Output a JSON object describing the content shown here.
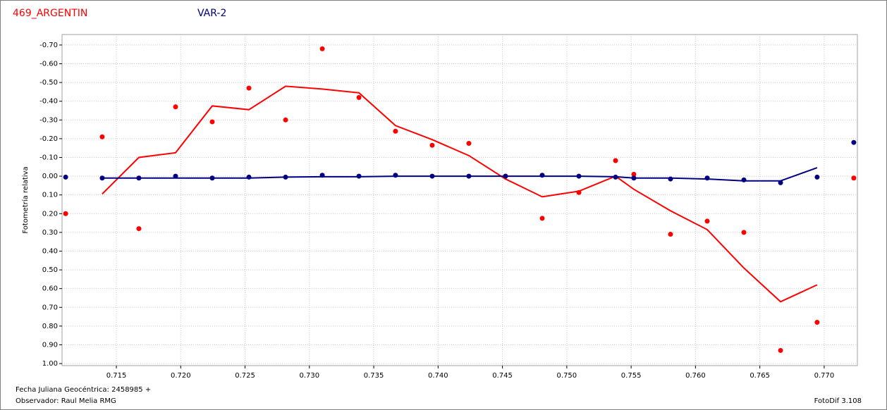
{
  "chart_data": {
    "type": "scatter",
    "series_label_1": "469_ARGENTIN",
    "series_label_2": "VAR-2",
    "ylabel": "Fotometría relativa",
    "xlabel": "Fecha Juliana Geocéntrica: 2458985 +",
    "observer": "Observador: Raul Melia RMG",
    "software": "FotoDif 3.108",
    "grid": true,
    "y_inverted": true,
    "xlim": [
      0.71078,
      0.77258
    ],
    "xticks": [
      0.715,
      {
        "value": 0.72,
        "label": "0.720"
      },
      0.725,
      {
        "value": 0.73,
        "label": "0.730"
      },
      0.735,
      {
        "value": 0.74,
        "label": "0.740"
      },
      0.745,
      {
        "value": 0.75,
        "label": "0.750"
      },
      0.755,
      {
        "value": 0.76,
        "label": "0.760"
      },
      0.765,
      {
        "value": 0.77,
        "label": "0.770"
      }
    ],
    "ylim": [
      -0.756,
      1.011
    ],
    "yticks": [
      {
        "value": -0.7,
        "label": "-0.70"
      },
      {
        "value": -0.6,
        "label": "-0.60"
      },
      {
        "value": -0.5,
        "label": "-0.50"
      },
      {
        "value": -0.4,
        "label": "-0.40"
      },
      {
        "value": -0.3,
        "label": "-0.30"
      },
      {
        "value": -0.2,
        "label": "-0.20"
      },
      {
        "value": -0.1,
        "label": "-0.10"
      },
      {
        "value": 0,
        "label": "0.00"
      },
      {
        "value": 0.1,
        "label": "0.10"
      },
      {
        "value": 0.2,
        "label": "0.20"
      },
      {
        "value": 0.3,
        "label": "0.30"
      },
      {
        "value": 0.4,
        "label": "0.40"
      },
      {
        "value": 0.5,
        "label": "0.50"
      },
      {
        "value": 0.6,
        "label": "0.60"
      },
      {
        "value": 0.7,
        "label": "0.70"
      },
      {
        "value": 0.8,
        "label": "0.80"
      },
      {
        "value": 0.9,
        "label": "0.90"
      },
      {
        "value": 1,
        "label": "1.00"
      }
    ],
    "x": [
      0.71106,
      0.7139,
      0.71675,
      0.7196,
      0.72245,
      0.7253,
      0.72815,
      0.731,
      0.73385,
      0.73669,
      0.73954,
      0.74239,
      0.74524,
      0.74809,
      0.75094,
      0.75379,
      0.75521,
      0.75806,
      0.76091,
      0.76376,
      0.76661,
      0.76945,
      0.7723
    ],
    "series": [
      {
        "name": "469_ARGENTIN",
        "color": "#ff0000",
        "values": [
          0.2,
          -0.21,
          0.28,
          -0.37,
          -0.29,
          -0.47,
          -0.3,
          -0.68,
          -0.42,
          -0.24,
          -0.165,
          -0.175,
          0.0,
          0.225,
          0.087,
          -0.083,
          -0.01,
          0.31,
          0.24,
          0.3,
          0.93,
          0.78,
          0.01
        ],
        "trend_values": [
          null,
          0.095,
          -0.1,
          -0.125,
          -0.375,
          -0.355,
          -0.48,
          -0.465,
          -0.445,
          -0.27,
          -0.195,
          -0.11,
          0.015,
          0.11,
          0.08,
          0.0,
          0.07,
          0.185,
          0.285,
          0.49,
          0.67,
          0.58,
          null
        ]
      },
      {
        "name": "VAR-2",
        "color": "#000080",
        "values": [
          0.005,
          0.01,
          0.01,
          0.0,
          0.01,
          0.005,
          0.005,
          -0.005,
          0.0,
          -0.005,
          0.0,
          0.0,
          0.0,
          -0.005,
          0.0,
          0.005,
          0.01,
          0.015,
          0.01,
          0.02,
          0.035,
          0.005,
          -0.18
        ],
        "trend_values": [
          null,
          0.01,
          0.01,
          0.01,
          0.01,
          0.01,
          0.005,
          0.003,
          0.003,
          0.0,
          0.0,
          0.0,
          0.0,
          0.0,
          0.0,
          0.003,
          0.01,
          0.01,
          0.015,
          0.025,
          0.025,
          -0.045,
          null
        ]
      }
    ]
  }
}
